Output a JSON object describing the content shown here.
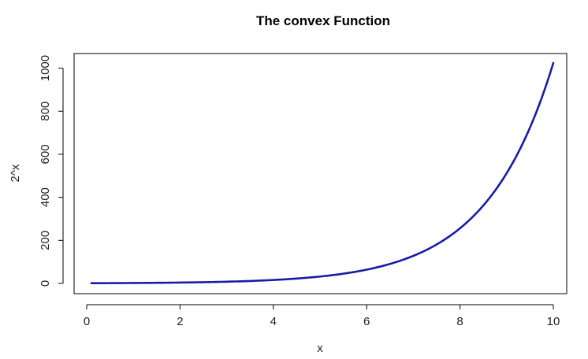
{
  "chart_data": {
    "type": "line",
    "title": "The convex Function",
    "xlabel": "x",
    "ylabel": "2^x",
    "xlim": [
      0,
      10
    ],
    "ylim": [
      0,
      1024
    ],
    "x_ticks": [
      0,
      2,
      4,
      6,
      8,
      10
    ],
    "y_ticks": [
      0,
      200,
      400,
      600,
      800,
      1000
    ],
    "x_tick_labels": [
      "0",
      "2",
      "4",
      "6",
      "8",
      "10"
    ],
    "y_tick_labels": [
      "0",
      "200",
      "400",
      "600",
      "800",
      "1000"
    ],
    "grid": false,
    "series": [
      {
        "color": "#1a1aa8",
        "x": [
          0.1,
          0.5,
          1,
          1.5,
          2,
          2.5,
          3,
          3.5,
          4,
          4.5,
          5,
          5.5,
          6,
          6.5,
          7,
          7.5,
          8,
          8.5,
          9,
          9.5,
          10
        ],
        "y": [
          1.07,
          1.41,
          2,
          2.83,
          4,
          5.66,
          8,
          11.31,
          16,
          22.63,
          32,
          45.25,
          64,
          90.51,
          128,
          181.02,
          256,
          362.04,
          512,
          724.08,
          1024
        ]
      }
    ]
  }
}
